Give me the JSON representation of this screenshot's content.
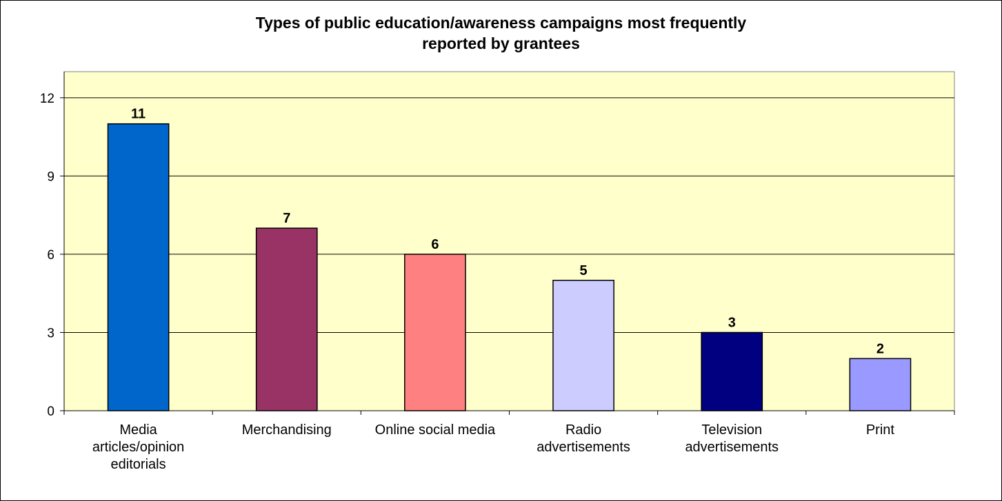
{
  "chart_data": {
    "type": "bar",
    "title_lines": [
      "Types of public education/awareness campaigns most frequently",
      "reported by grantees"
    ],
    "categories": [
      [
        "Media",
        "articles/opinion",
        "editorials"
      ],
      [
        "Merchandising"
      ],
      [
        "Online social media"
      ],
      [
        "Radio",
        "advertisements"
      ],
      [
        "Television",
        "advertisements"
      ],
      [
        "Print"
      ]
    ],
    "values": [
      11,
      7,
      6,
      5,
      3,
      2
    ],
    "bar_colors": [
      "#0066CC",
      "#993366",
      "#FF8080",
      "#CCCCFF",
      "#000080",
      "#9999FF"
    ],
    "ylim": [
      0,
      13
    ],
    "yticks": [
      0,
      3,
      6,
      9,
      12
    ],
    "grid": true,
    "plot_background": "#FFFFCC"
  }
}
